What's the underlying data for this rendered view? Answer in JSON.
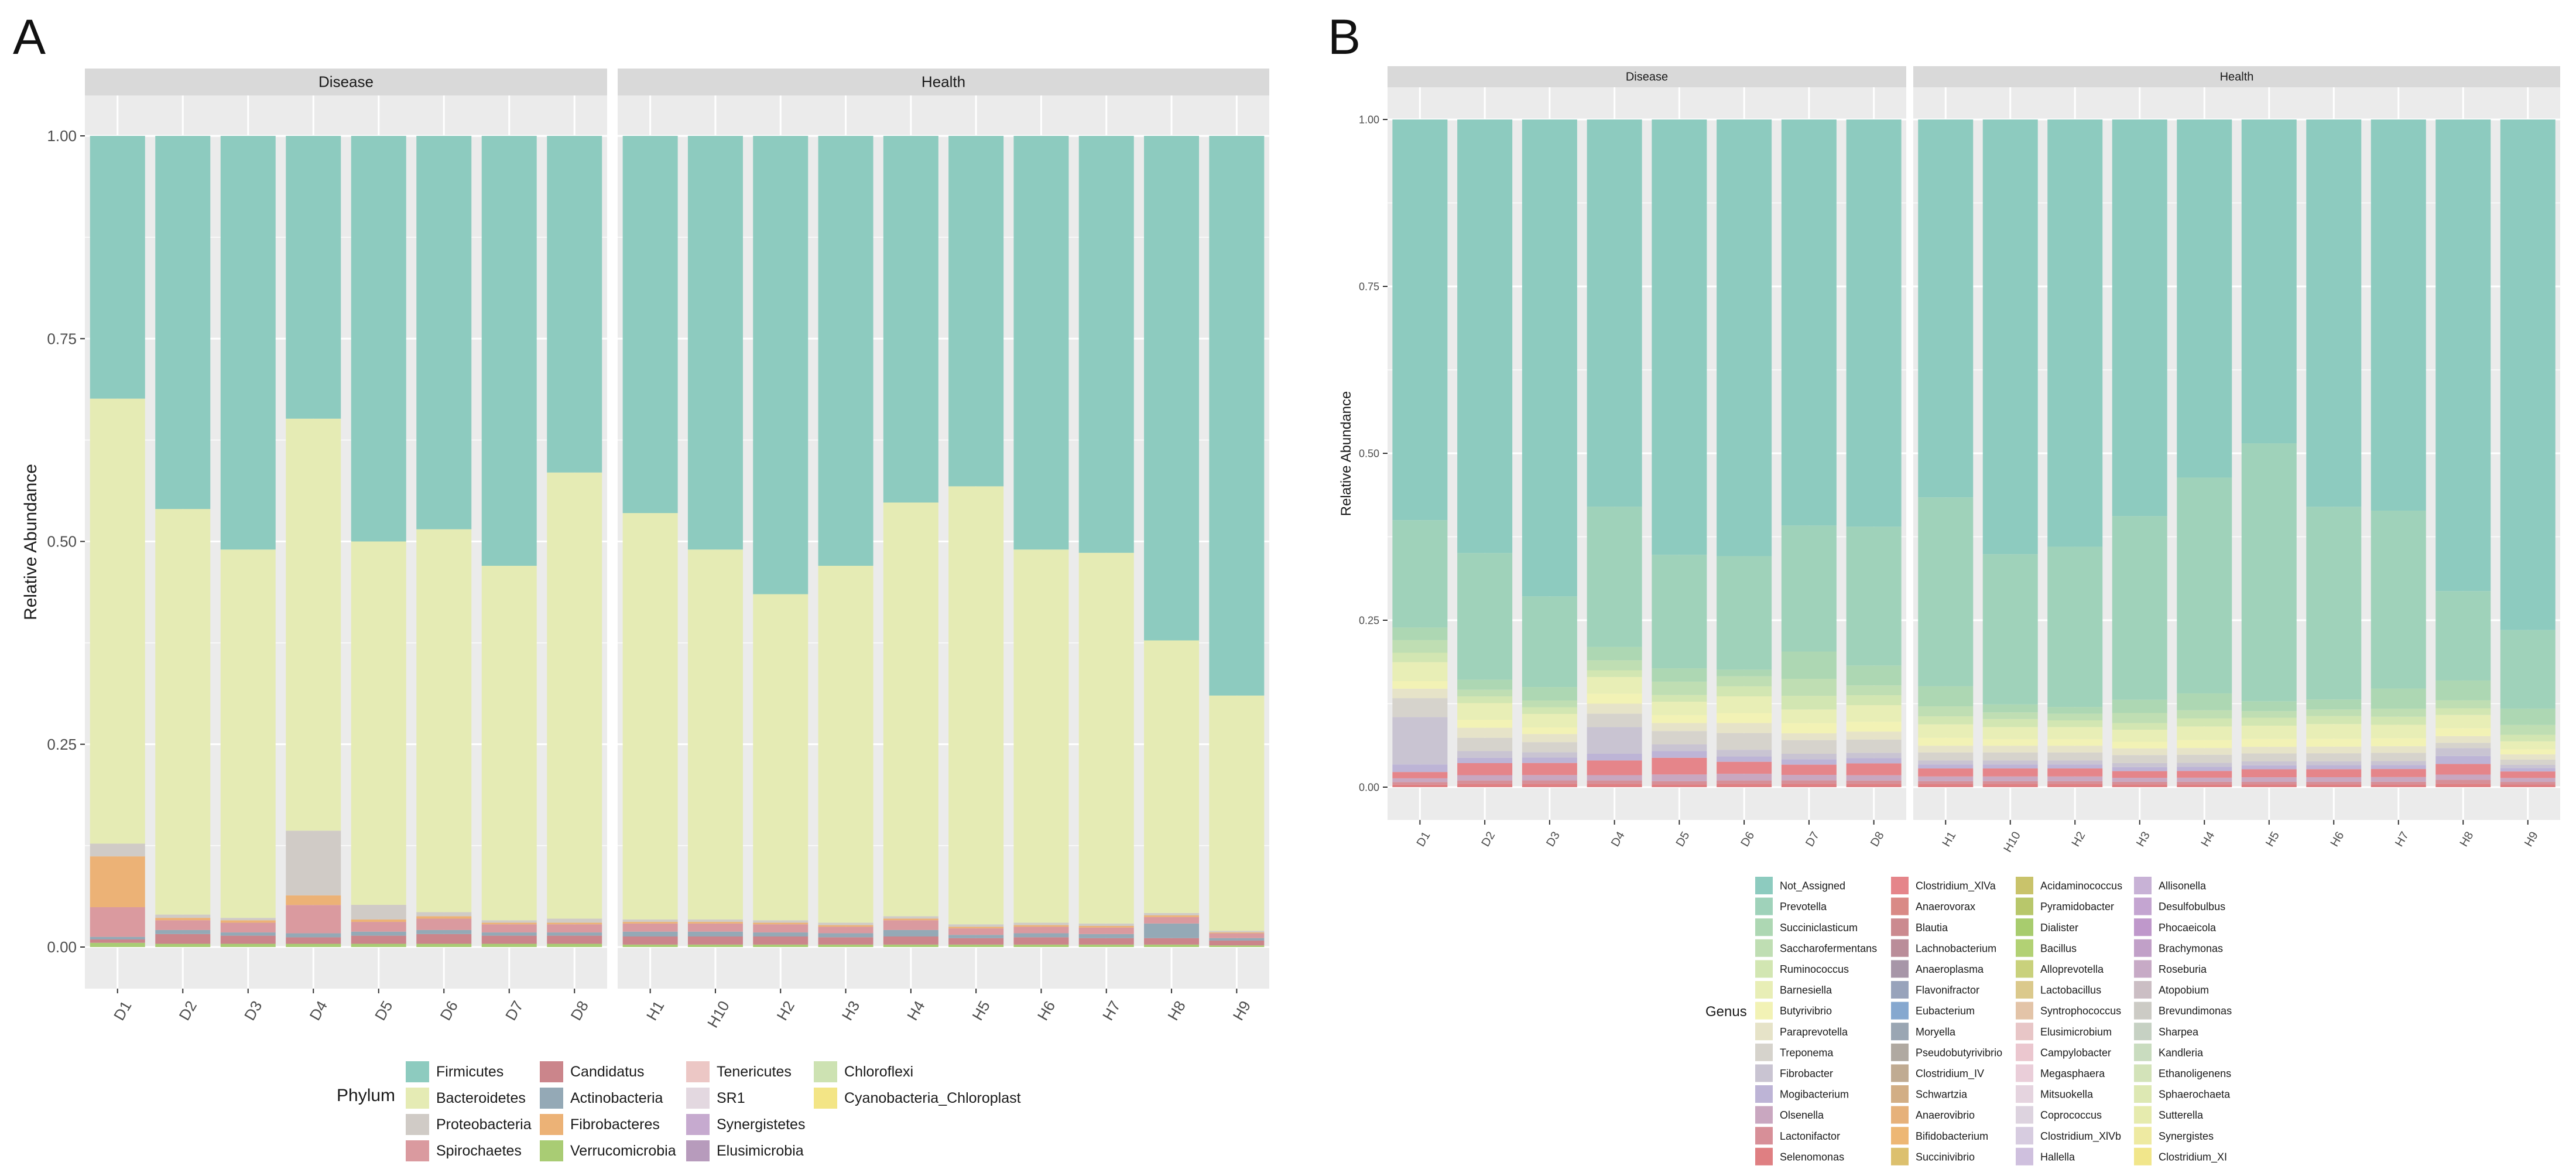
{
  "panels": [
    {
      "label": "A",
      "chart_data": {
        "type": "bar",
        "stacked": true,
        "ylabel": "Relative Abundance",
        "xlabel": "",
        "ylim": [
          0,
          1
        ],
        "yticks": [
          "0.00",
          "0.25",
          "0.50",
          "0.75",
          "1.00"
        ],
        "facets": [
          {
            "name": "Disease",
            "categories": [
              "D1",
              "D2",
              "D3",
              "D4",
              "D5",
              "D6",
              "D7",
              "D8"
            ]
          },
          {
            "name": "Health",
            "categories": [
              "H1",
              "H10",
              "H2",
              "H3",
              "H4",
              "H5",
              "H6",
              "H7",
              "H8",
              "H9"
            ]
          }
        ],
        "legend_title": "Phylum",
        "series_names": [
          "Firmicutes",
          "Bacteroidetes",
          "Proteobacteria",
          "Spirochaetes",
          "Candidatus",
          "Actinobacteria",
          "Fibrobacteres",
          "Verrucomicrobia",
          "Tenericutes",
          "SR1",
          "Synergistetes",
          "Elusimicrobia",
          "Chloroflexi",
          "Cyanobacteria_Chloroplast"
        ],
        "series_colors": [
          "#8DCBBF",
          "#E5EBB4",
          "#D0CBC6",
          "#DA9A9F",
          "#CB858B",
          "#94A9B6",
          "#ECB276",
          "#A9CC74",
          "#ECC7C5",
          "#E3D8E0",
          "#C6AACF",
          "#B79BBC",
          "#CDE2B2",
          "#F3E586"
        ],
        "bottom_series_order": [
          "Verrucomicrobia",
          "Candidatus",
          "Actinobacteria",
          "Spirochaetes",
          "Fibrobacteres",
          "Proteobacteria",
          "Bacteroidetes",
          "Firmicutes"
        ],
        "samples": {
          "D1": [
            0.005,
            0.004,
            0.003,
            0.035,
            0.06,
            0.015,
            0.525,
            0.31
          ],
          "D2": [
            0.004,
            0.012,
            0.005,
            0.012,
            0.003,
            0.004,
            0.5,
            0.46
          ],
          "D3": [
            0.004,
            0.01,
            0.004,
            0.012,
            0.003,
            0.003,
            0.454,
            0.51
          ],
          "D4": [
            0.004,
            0.008,
            0.005,
            0.035,
            0.012,
            0.08,
            0.51,
            0.35
          ],
          "D5": [
            0.004,
            0.01,
            0.005,
            0.012,
            0.003,
            0.018,
            0.448,
            0.5
          ],
          "D6": [
            0.004,
            0.012,
            0.005,
            0.014,
            0.003,
            0.005,
            0.472,
            0.485
          ],
          "D7": [
            0.004,
            0.01,
            0.004,
            0.01,
            0.002,
            0.003,
            0.437,
            0.53
          ],
          "D8": [
            0.004,
            0.01,
            0.004,
            0.01,
            0.002,
            0.005,
            0.55,
            0.415
          ],
          "H1": [
            0.003,
            0.01,
            0.006,
            0.01,
            0.002,
            0.003,
            0.501,
            0.465
          ],
          "H10": [
            0.003,
            0.01,
            0.006,
            0.01,
            0.002,
            0.003,
            0.456,
            0.51
          ],
          "H2": [
            0.003,
            0.01,
            0.005,
            0.01,
            0.002,
            0.003,
            0.402,
            0.565
          ],
          "H3": [
            0.003,
            0.009,
            0.005,
            0.008,
            0.002,
            0.003,
            0.44,
            0.53
          ],
          "H4": [
            0.003,
            0.01,
            0.008,
            0.012,
            0.002,
            0.003,
            0.51,
            0.452
          ],
          "H5": [
            0.003,
            0.008,
            0.004,
            0.008,
            0.002,
            0.003,
            0.54,
            0.432
          ],
          "H6": [
            0.003,
            0.009,
            0.005,
            0.008,
            0.002,
            0.003,
            0.46,
            0.51
          ],
          "H7": [
            0.003,
            0.008,
            0.005,
            0.008,
            0.002,
            0.003,
            0.457,
            0.514
          ],
          "H8": [
            0.003,
            0.008,
            0.018,
            0.008,
            0.002,
            0.003,
            0.336,
            0.622
          ],
          "H9": [
            0.002,
            0.006,
            0.003,
            0.006,
            0.001,
            0.002,
            0.29,
            0.69
          ]
        }
      }
    },
    {
      "label": "B",
      "chart_data": {
        "type": "bar",
        "stacked": true,
        "ylabel": "Relative Abundance",
        "xlabel": "",
        "ylim": [
          0,
          1
        ],
        "yticks": [
          "0.00",
          "0.25",
          "0.50",
          "0.75",
          "1.00"
        ],
        "facets": [
          {
            "name": "Disease",
            "categories": [
              "D1",
              "D2",
              "D3",
              "D4",
              "D5",
              "D6",
              "D7",
              "D8"
            ]
          },
          {
            "name": "Health",
            "categories": [
              "H1",
              "H10",
              "H2",
              "H3",
              "H4",
              "H5",
              "H6",
              "H7",
              "H8",
              "H9"
            ]
          }
        ],
        "legend_title": "Genus",
        "series_names": [
          "Not_Assigned",
          "Prevotella",
          "Succiniclasticum",
          "Saccharofermentans",
          "Ruminococcus",
          "Barnesiella",
          "Butyrivibrio",
          "Paraprevotella",
          "Treponema",
          "Fibrobacter",
          "Mogibacterium",
          "Olsenella",
          "Lactonifactor",
          "Selenomonas",
          "Clostridium_XlVa",
          "Anaerovorax",
          "Blautia",
          "Lachnobacterium",
          "Anaeroplasma",
          "Flavonifractor",
          "Eubacterium",
          "Moryella",
          "Pseudobutyrivibrio",
          "Clostridium_IV",
          "Schwartzia",
          "Anaerovibrio",
          "Bifidobacterium",
          "Succinivibrio",
          "Acidaminococcus",
          "Pyramidobacter",
          "Dialister",
          "Bacillus",
          "Alloprevotella",
          "Lactobacillus",
          "Syntrophococcus",
          "Elusimicrobium",
          "Campylobacter",
          "Megasphaera",
          "Mitsuokella",
          "Coprococcus",
          "Clostridium_XlVb",
          "Hallella",
          "Allisonella",
          "Desulfobulbus",
          "Phocaeicola",
          "Brachymonas",
          "Roseburia",
          "Atopobium",
          "Brevundimonas",
          "Sharpea",
          "Kandleria",
          "Ethanoligenens",
          "Sphaerochaeta",
          "Sutterella",
          "Synergistes",
          "Clostridium_XI"
        ],
        "series_colors": [
          "#8DCBBF",
          "#9FD2BA",
          "#ADD7B3",
          "#BFDEB3",
          "#D2E6B2",
          "#E8EEB6",
          "#F2F2B5",
          "#E6E3C8",
          "#D6D3CC",
          "#C9C4D2",
          "#BDB4D6",
          "#C9A7C0",
          "#D78F98",
          "#DF7F82",
          "#E5858A",
          "#D98A86",
          "#CB8A8F",
          "#BA8D99",
          "#A796A8",
          "#98A3BB",
          "#86A8CF",
          "#9AA6B3",
          "#B0A9A1",
          "#C0AB92",
          "#D2AE85",
          "#E6B17A",
          "#EDB774",
          "#DCC06E",
          "#C9C36B",
          "#B8C76B",
          "#A8CC6E",
          "#B2D174",
          "#C9D17C",
          "#DBC98C",
          "#E3C4A8",
          "#E8C6C7",
          "#EBC7CF",
          "#EACED9",
          "#E5D4DF",
          "#DDD3DF",
          "#D7CCE0",
          "#CFC0DE",
          "#C8B2D6",
          "#C4A5D1",
          "#BF98CB",
          "#C1A0C8",
          "#C7AAC6",
          "#CBBEC4",
          "#CCCBC5",
          "#C6D1C3",
          "#C9DCBF",
          "#D3E3B9",
          "#DDE8B3",
          "#E6EBAE",
          "#EEEAA2",
          "#F1E68B"
        ],
        "bottom_series_order": [
          "Selenomonas",
          "Lactonifactor",
          "Olsenella",
          "Clostridium_XlVa",
          "Mogibacterium",
          "Fibrobacter",
          "Treponema",
          "Paraprevotella",
          "Butyrivibrio",
          "Barnesiella",
          "Ruminococcus",
          "Saccharofermentans",
          "Succiniclasticum",
          "Prevotella",
          "Not_Assigned"
        ],
        "samples": {
          "D1": [
            0.004,
            0.004,
            0.006,
            0.01,
            0.012,
            0.075,
            0.03,
            0.015,
            0.012,
            0.03,
            0.015,
            0.02,
            0.02,
            0.17,
            0.635
          ],
          "D2": [
            0.005,
            0.005,
            0.008,
            0.018,
            0.008,
            0.01,
            0.02,
            0.015,
            0.012,
            0.025,
            0.01,
            0.01,
            0.015,
            0.19,
            0.65
          ],
          "D3": [
            0.005,
            0.005,
            0.008,
            0.018,
            0.008,
            0.008,
            0.015,
            0.012,
            0.01,
            0.02,
            0.01,
            0.01,
            0.02,
            0.135,
            0.71
          ],
          "D4": [
            0.005,
            0.005,
            0.008,
            0.022,
            0.01,
            0.04,
            0.02,
            0.015,
            0.015,
            0.025,
            0.01,
            0.015,
            0.02,
            0.21,
            0.58
          ],
          "D5": [
            0.004,
            0.005,
            0.01,
            0.025,
            0.01,
            0.01,
            0.02,
            0.012,
            0.012,
            0.02,
            0.01,
            0.02,
            0.02,
            0.17,
            0.652
          ],
          "D6": [
            0.005,
            0.005,
            0.01,
            0.018,
            0.008,
            0.01,
            0.025,
            0.015,
            0.015,
            0.025,
            0.015,
            0.015,
            0.01,
            0.17,
            0.654
          ],
          "D7": [
            0.005,
            0.005,
            0.008,
            0.015,
            0.008,
            0.008,
            0.02,
            0.01,
            0.015,
            0.02,
            0.02,
            0.025,
            0.04,
            0.185,
            0.596
          ],
          "D8": [
            0.005,
            0.005,
            0.008,
            0.018,
            0.008,
            0.008,
            0.02,
            0.012,
            0.015,
            0.025,
            0.015,
            0.015,
            0.03,
            0.21,
            0.616
          ],
          "H1": [
            0.005,
            0.004,
            0.007,
            0.012,
            0.006,
            0.006,
            0.012,
            0.01,
            0.012,
            0.02,
            0.012,
            0.015,
            0.03,
            0.283,
            0.566
          ],
          "H10": [
            0.005,
            0.004,
            0.007,
            0.012,
            0.006,
            0.006,
            0.012,
            0.01,
            0.01,
            0.018,
            0.012,
            0.01,
            0.012,
            0.225,
            0.651
          ],
          "H2": [
            0.005,
            0.004,
            0.007,
            0.012,
            0.006,
            0.006,
            0.012,
            0.01,
            0.01,
            0.018,
            0.01,
            0.01,
            0.01,
            0.24,
            0.64
          ],
          "H3": [
            0.004,
            0.004,
            0.006,
            0.01,
            0.006,
            0.006,
            0.012,
            0.01,
            0.01,
            0.018,
            0.01,
            0.015,
            0.02,
            0.275,
            0.594
          ],
          "H4": [
            0.004,
            0.004,
            0.006,
            0.01,
            0.006,
            0.006,
            0.012,
            0.01,
            0.012,
            0.02,
            0.012,
            0.012,
            0.025,
            0.32,
            0.531
          ],
          "H5": [
            0.004,
            0.004,
            0.007,
            0.012,
            0.006,
            0.006,
            0.012,
            0.01,
            0.012,
            0.02,
            0.012,
            0.01,
            0.015,
            0.39,
            0.49
          ],
          "H6": [
            0.004,
            0.004,
            0.007,
            0.012,
            0.006,
            0.006,
            0.012,
            0.01,
            0.012,
            0.022,
            0.012,
            0.01,
            0.015,
            0.29,
            0.583
          ],
          "H7": [
            0.004,
            0.004,
            0.007,
            0.012,
            0.006,
            0.006,
            0.012,
            0.01,
            0.012,
            0.02,
            0.012,
            0.012,
            0.03,
            0.265,
            0.583
          ],
          "H8": [
            0.005,
            0.006,
            0.008,
            0.016,
            0.012,
            0.012,
            0.008,
            0.01,
            0.012,
            0.02,
            0.01,
            0.012,
            0.03,
            0.135,
            0.712
          ],
          "H9": [
            0.004,
            0.004,
            0.006,
            0.01,
            0.005,
            0.005,
            0.008,
            0.008,
            0.008,
            0.012,
            0.01,
            0.015,
            0.025,
            0.12,
            0.78
          ]
        }
      }
    }
  ]
}
